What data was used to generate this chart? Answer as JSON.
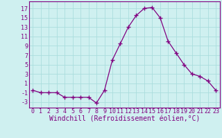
{
  "x": [
    0,
    1,
    2,
    3,
    4,
    5,
    6,
    7,
    8,
    9,
    10,
    11,
    12,
    13,
    14,
    15,
    16,
    17,
    18,
    19,
    20,
    21,
    22,
    23
  ],
  "y": [
    -0.5,
    -1,
    -1,
    -1,
    -2,
    -2,
    -2,
    -2,
    -3.2,
    -0.5,
    6,
    9.5,
    13,
    15.5,
    17,
    17.2,
    15,
    10,
    7.5,
    5,
    3,
    2.5,
    1.5,
    -0.5
  ],
  "line_color": "#800080",
  "marker": "+",
  "marker_size": 4,
  "marker_linewidth": 1.0,
  "bg_color": "#cff0f0",
  "grid_color": "#aadddd",
  "xlabel": "Windchill (Refroidissement éolien,°C)",
  "xlabel_fontsize": 7,
  "ytick_labels": [
    "-3",
    "-1",
    "1",
    "3",
    "5",
    "7",
    "9",
    "11",
    "13",
    "15",
    "17"
  ],
  "yticks": [
    -3,
    -1,
    1,
    3,
    5,
    7,
    9,
    11,
    13,
    15,
    17
  ],
  "ylim": [
    -4.2,
    18.5
  ],
  "xlim": [
    -0.5,
    23.5
  ],
  "xtick_labels": [
    "0",
    "1",
    "2",
    "3",
    "4",
    "5",
    "6",
    "7",
    "8",
    "9",
    "10",
    "11",
    "12",
    "13",
    "14",
    "15",
    "16",
    "17",
    "18",
    "19",
    "20",
    "21",
    "22",
    "23"
  ],
  "tick_fontsize": 6,
  "label_color": "#800080",
  "spine_color": "#800080",
  "line_width": 0.9
}
